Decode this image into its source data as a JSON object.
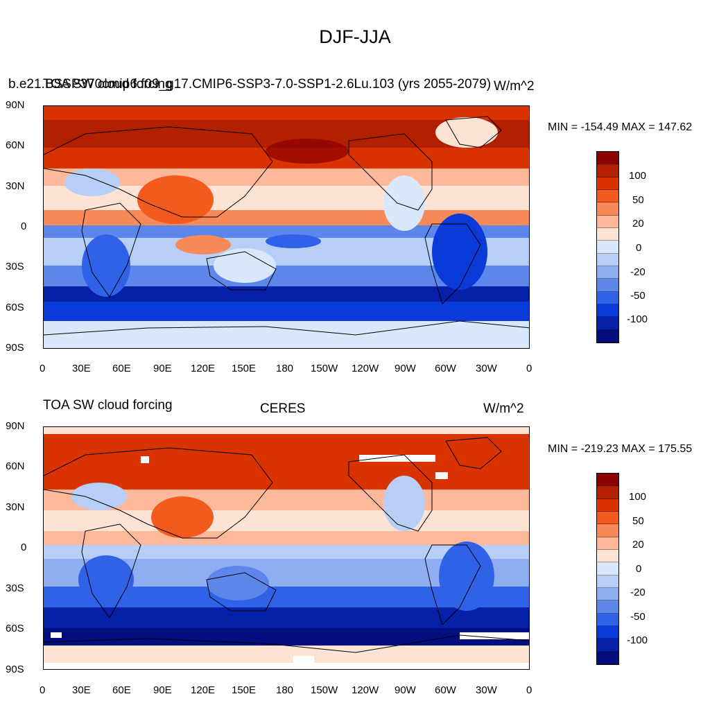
{
  "figure": {
    "title": "DJF-JJA"
  },
  "panels": [
    {
      "left_label": "b.e21.BSSP370cmip6.f09_g17.CMIP6-SSP3-7.0-SSP1-2.6Lu.103 (yrs 2055-2079)",
      "left_label_overlap": "TOA SW cloud forcing",
      "center_label": "",
      "units": "W/m^2",
      "stats": "MIN = -154.49 MAX = 147.62"
    },
    {
      "left_label": "TOA SW cloud forcing",
      "center_label": "CERES",
      "units": "W/m^2",
      "stats": "MIN = -219.23 MAX = 175.55"
    }
  ],
  "axes": {
    "lat_labels": [
      "90N",
      "60N",
      "30N",
      "0",
      "30S",
      "60S",
      "90S"
    ],
    "lon_labels": [
      "0",
      "30E",
      "60E",
      "90E",
      "120E",
      "150E",
      "180",
      "150W",
      "120W",
      "90W",
      "60W",
      "30W",
      "0"
    ]
  },
  "colorbar": {
    "labels": [
      "100",
      "50",
      "20",
      "0",
      "-20",
      "-50",
      "-100"
    ],
    "colors": [
      "#8b0000",
      "#b22000",
      "#d83300",
      "#f25a1e",
      "#f88a5a",
      "#fcb898",
      "#fde3d3",
      "#d8e8fa",
      "#b7cff6",
      "#8faef2",
      "#5d86ea",
      "#3062e8",
      "#0a3ad8",
      "#0620a8",
      "#020d80"
    ]
  },
  "colors": {
    "strong_pos": "#b22000",
    "pos": "#f25a1e",
    "weak_pos": "#fcb898",
    "neutral": "#d8e8fa",
    "weak_neg": "#8faef2",
    "neg": "#3062e8",
    "strong_neg": "#020d80"
  }
}
